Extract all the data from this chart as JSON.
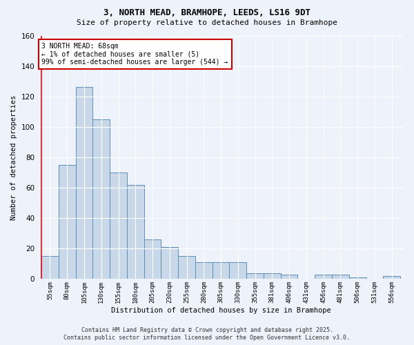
{
  "title1": "3, NORTH MEAD, BRAMHOPE, LEEDS, LS16 9DT",
  "title2": "Size of property relative to detached houses in Bramhope",
  "xlabel": "Distribution of detached houses by size in Bramhope",
  "ylabel": "Number of detached properties",
  "categories": [
    "55sqm",
    "80sqm",
    "105sqm",
    "130sqm",
    "155sqm",
    "180sqm",
    "205sqm",
    "230sqm",
    "255sqm",
    "280sqm",
    "305sqm",
    "330sqm",
    "355sqm",
    "381sqm",
    "406sqm",
    "431sqm",
    "456sqm",
    "481sqm",
    "506sqm",
    "531sqm",
    "556sqm"
  ],
  "values": [
    15,
    75,
    126,
    105,
    70,
    62,
    26,
    21,
    15,
    11,
    11,
    11,
    4,
    4,
    3,
    0,
    3,
    3,
    1,
    0,
    2
  ],
  "bar_color": "#c8d8e8",
  "bar_edge_color": "#5b8db8",
  "background_color": "#eef2fa",
  "grid_color": "#ffffff",
  "annotation_text": "3 NORTH MEAD: 68sqm\n← 1% of detached houses are smaller (5)\n99% of semi-detached houses are larger (544) →",
  "annotation_box_color": "#ffffff",
  "annotation_box_edge": "#cc0000",
  "ylim": [
    0,
    160
  ],
  "yticks": [
    0,
    20,
    40,
    60,
    80,
    100,
    120,
    140,
    160
  ],
  "footer1": "Contains HM Land Registry data © Crown copyright and database right 2025.",
  "footer2": "Contains public sector information licensed under the Open Government Licence v3.0."
}
